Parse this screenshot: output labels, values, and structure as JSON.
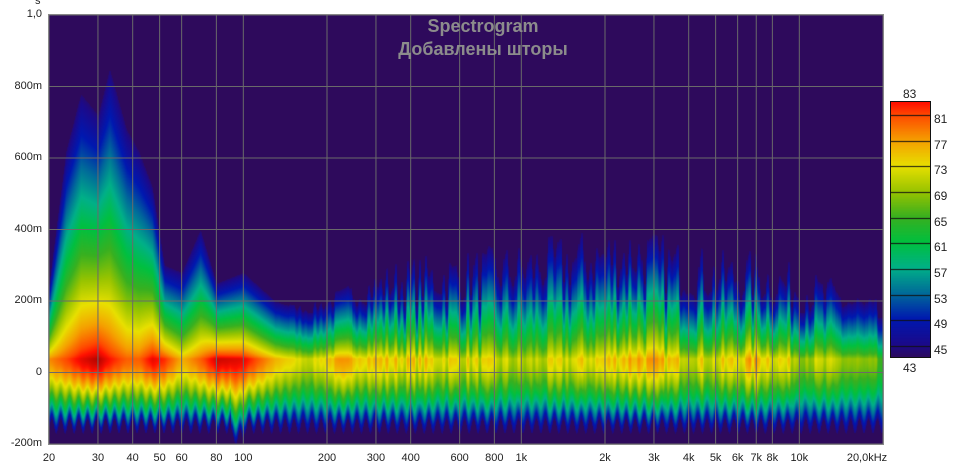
{
  "chart_data": {
    "type": "heatmap",
    "title": "Spectrogram",
    "subtitle": "Добавлены шторы",
    "ylabel": "s",
    "xlabel": "kHz",
    "x_scale": "log",
    "xlim": [
      20,
      20000
    ],
    "ylim": [
      -0.2,
      1.0
    ],
    "grid": true,
    "x_ticks": [
      {
        "v": 20,
        "label": "20"
      },
      {
        "v": 30,
        "label": "30"
      },
      {
        "v": 40,
        "label": "40"
      },
      {
        "v": 50,
        "label": "50"
      },
      {
        "v": 60,
        "label": "60"
      },
      {
        "v": 80,
        "label": "80"
      },
      {
        "v": 100,
        "label": "100"
      },
      {
        "v": 200,
        "label": "200"
      },
      {
        "v": 300,
        "label": "300"
      },
      {
        "v": 400,
        "label": "400"
      },
      {
        "v": 600,
        "label": "600"
      },
      {
        "v": 800,
        "label": "800"
      },
      {
        "v": 1000,
        "label": "1k"
      },
      {
        "v": 2000,
        "label": "2k"
      },
      {
        "v": 3000,
        "label": "3k"
      },
      {
        "v": 4000,
        "label": "4k"
      },
      {
        "v": 5000,
        "label": "5k"
      },
      {
        "v": 6000,
        "label": "6k"
      },
      {
        "v": 7000,
        "label": "7k"
      },
      {
        "v": 8000,
        "label": "8k"
      },
      {
        "v": 10000,
        "label": "10k"
      },
      {
        "v": 20000,
        "label": "20,0kHz"
      }
    ],
    "y_ticks": [
      {
        "v": 1.0,
        "label": "1,0"
      },
      {
        "v": 0.8,
        "label": "800m"
      },
      {
        "v": 0.6,
        "label": "600m"
      },
      {
        "v": 0.4,
        "label": "400m"
      },
      {
        "v": 0.2,
        "label": "200m"
      },
      {
        "v": 0.0,
        "label": "0"
      },
      {
        "v": -0.2,
        "label": "-200m"
      }
    ],
    "colorbar": {
      "min": 43,
      "max": 83,
      "min_label": "43",
      "max_label": "83",
      "ticks": [
        81,
        77,
        73,
        69,
        65,
        61,
        57,
        53,
        49,
        45
      ],
      "tick_labels": [
        "81",
        "77",
        "73",
        "69",
        "65",
        "61",
        "57",
        "53",
        "49",
        "45"
      ],
      "colors": [
        {
          "v": 43,
          "c": "#2e0a5c"
        },
        {
          "v": 45,
          "c": "#1c0a8a"
        },
        {
          "v": 49,
          "c": "#0018b0"
        },
        {
          "v": 53,
          "c": "#006a9a"
        },
        {
          "v": 57,
          "c": "#00b088"
        },
        {
          "v": 61,
          "c": "#00c040"
        },
        {
          "v": 65,
          "c": "#38b020"
        },
        {
          "v": 69,
          "c": "#98c400"
        },
        {
          "v": 73,
          "c": "#e8e000"
        },
        {
          "v": 77,
          "c": "#f5a000"
        },
        {
          "v": 81,
          "c": "#ff4a00"
        },
        {
          "v": 83,
          "c": "#ff1000"
        },
        {
          "v": 87,
          "c": "#9a0000"
        }
      ]
    },
    "decay_envelope": {
      "freq_hz": [
        20,
        23,
        26,
        30,
        33,
        38,
        42,
        47,
        52,
        60,
        70,
        80,
        100,
        130,
        170,
        220,
        350,
        600,
        1000,
        2000,
        2600,
        3500,
        5000,
        7000,
        10000,
        15000,
        20000
      ],
      "top_time_s": [
        0.25,
        0.62,
        0.78,
        0.72,
        0.85,
        0.68,
        0.62,
        0.52,
        0.3,
        0.28,
        0.4,
        0.25,
        0.28,
        0.2,
        0.18,
        0.22,
        0.28,
        0.3,
        0.32,
        0.36,
        0.37,
        0.33,
        0.3,
        0.3,
        0.26,
        0.22,
        0.17
      ],
      "peak_level": [
        78,
        81,
        84,
        86,
        83,
        80,
        80,
        84,
        82,
        76,
        80,
        85,
        84,
        76,
        72,
        78,
        77,
        76,
        73,
        77,
        80,
        77,
        75,
        79,
        74,
        72,
        68
      ]
    },
    "floor_level": 43,
    "background_color": "#2e0a5c"
  }
}
